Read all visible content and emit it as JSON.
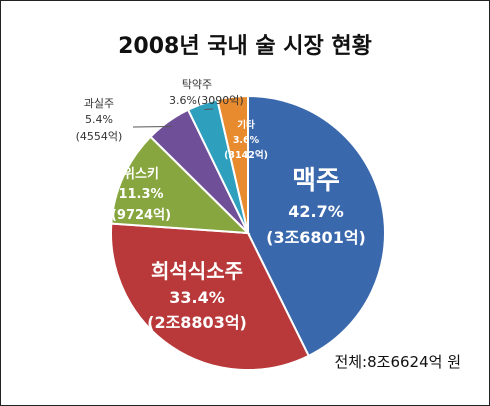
{
  "chart_data": {
    "type": "pie",
    "title": "2008년 국내 술 시장 현황",
    "total_label": "전체:8조6624억 원",
    "slices": [
      {
        "name": "맥주",
        "percent": 42.7,
        "percent_label": "42.7%",
        "amount_label": "(3조6801억)",
        "color": "#3a68ad"
      },
      {
        "name": "희석식소주",
        "percent": 33.4,
        "percent_label": "33.4%",
        "amount_label": "(2조8803억)",
        "color": "#b9393a"
      },
      {
        "name": "위스키",
        "percent": 11.3,
        "percent_label": "11.3%",
        "amount_label": "(9724억)",
        "color": "#87a63f"
      },
      {
        "name": "과실주",
        "percent": 5.4,
        "percent_label": "5.4%",
        "amount_label": "(4554억)",
        "color": "#6f4f97"
      },
      {
        "name": "탁약주",
        "percent": 3.6,
        "percent_label": "3.6%",
        "amount_label": "(3090억)",
        "color": "#2f9fbe"
      },
      {
        "name": "기타",
        "percent": 3.6,
        "percent_label": "3.6%",
        "amount_label": "(3142억)",
        "color": "#e88a2e"
      }
    ]
  }
}
